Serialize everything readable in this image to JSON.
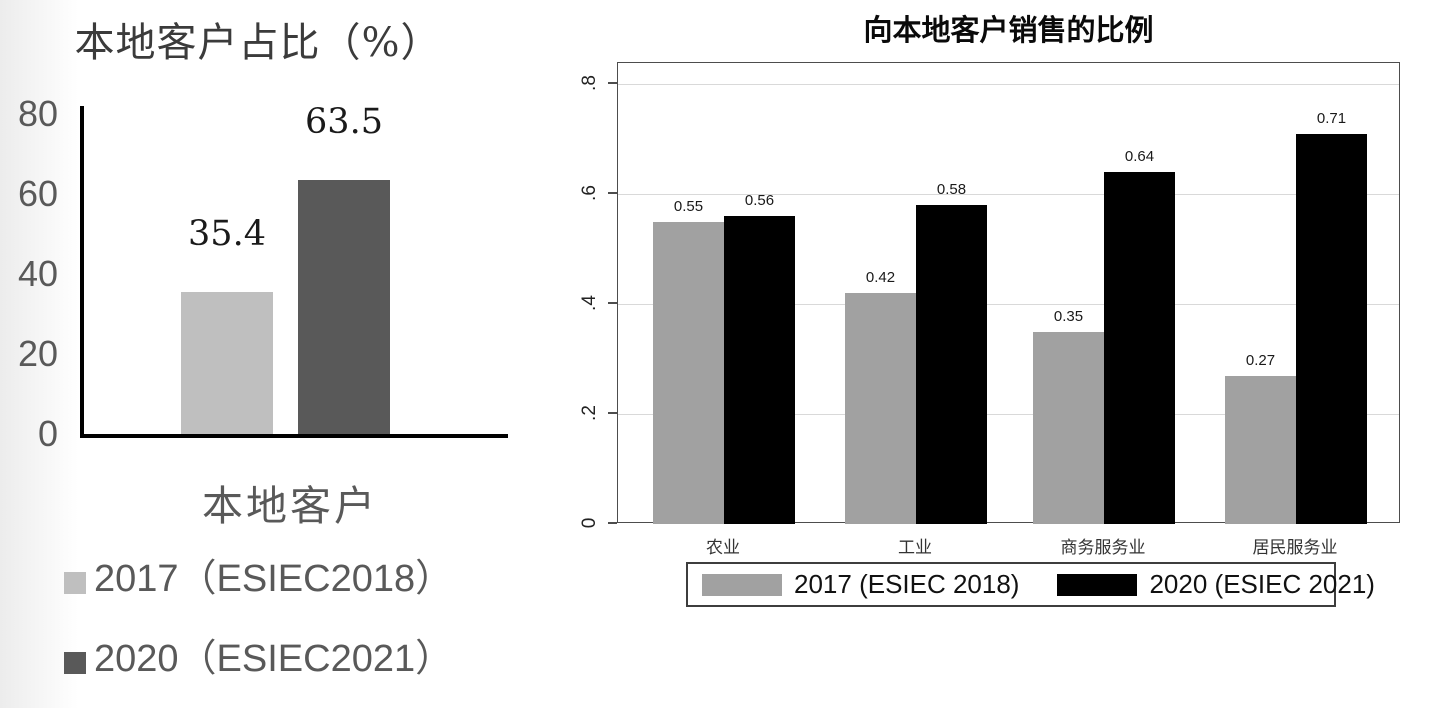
{
  "left_chart": {
    "title": "本地客户占比（%）",
    "x_label": "本地客户",
    "y_ticks": [
      "0",
      "20",
      "40",
      "60",
      "80"
    ],
    "value_labels": [
      "35.4",
      "63.5"
    ],
    "legend": [
      {
        "label": "2017（ESIEC2018）",
        "color": "#bfbfbf"
      },
      {
        "label": "2020（ESIEC2021）",
        "color": "#595959"
      }
    ]
  },
  "right_chart": {
    "title": "向本地客户销售的比例",
    "y_tick_labels": [
      "0",
      ".2",
      ".4",
      ".6",
      ".8"
    ],
    "categories": [
      "农业",
      "工业",
      "商务服务业",
      "居民服务业"
    ],
    "legend": [
      {
        "label": "2017 (ESIEC 2018)",
        "color": "#a1a1a1"
      },
      {
        "label": "2020 (ESIEC 2021)",
        "color": "#000000"
      }
    ]
  },
  "colors": {
    "left_bar_2017": "#bfbfbf",
    "left_bar_2020": "#595959",
    "right_bar_2017": "#a1a1a1",
    "right_bar_2020": "#000000",
    "gridline": "#d9d9d9",
    "axis": "#000000",
    "plot_border": "#4d4d4d",
    "gray_text": "#595959"
  },
  "chart_data": [
    {
      "type": "bar",
      "title": "本地客户占比（%）",
      "categories": [
        "本地客户"
      ],
      "series": [
        {
          "name": "2017（ESIEC2018）",
          "values": [
            35.4
          ],
          "labels": [
            "35.4"
          ]
        },
        {
          "name": "2020（ESIEC2021）",
          "values": [
            63.5
          ],
          "labels": [
            "63.5"
          ]
        }
      ],
      "xlabel": "本地客户",
      "ylabel": "",
      "ylim": [
        0,
        80
      ],
      "yticks": [
        0,
        20,
        40,
        60,
        80
      ],
      "grid": false,
      "legend_position": "bottom-left-stacked"
    },
    {
      "type": "bar",
      "title": "向本地客户销售的比例",
      "categories": [
        "农业",
        "工业",
        "商务服务业",
        "居民服务业"
      ],
      "series": [
        {
          "name": "2017 (ESIEC 2018)",
          "values": [
            0.55,
            0.42,
            0.35,
            0.27
          ],
          "labels": [
            "0.55",
            "0.42",
            "0.35",
            "0.27"
          ]
        },
        {
          "name": "2020 (ESIEC 2021)",
          "values": [
            0.56,
            0.58,
            0.64,
            0.71
          ],
          "labels": [
            "0.56",
            "0.58",
            "0.64",
            "0.71"
          ]
        }
      ],
      "xlabel": "",
      "ylabel": "",
      "ylim": [
        0,
        0.85
      ],
      "yticks": [
        0,
        0.2,
        0.4,
        0.6,
        0.8
      ],
      "ytick_labels": [
        "0",
        ".2",
        ".4",
        ".6",
        ".8"
      ],
      "grid": true,
      "legend_position": "bottom-boxed"
    }
  ]
}
